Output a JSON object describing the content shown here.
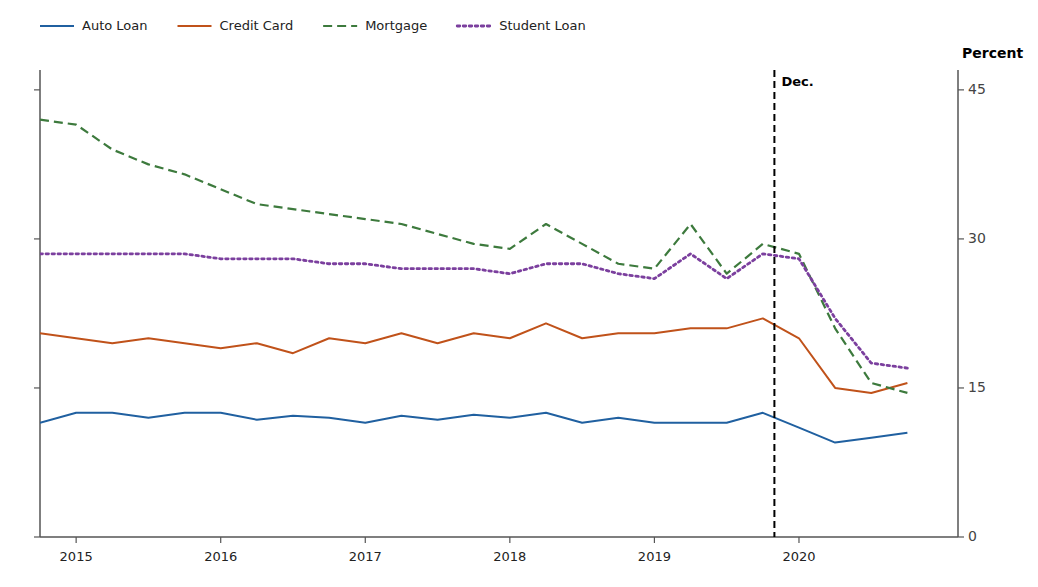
{
  "chart_data": {
    "type": "line",
    "y_label": "Percent",
    "x": [
      2014.75,
      2015.0,
      2015.25,
      2015.5,
      2015.75,
      2016.0,
      2016.25,
      2016.5,
      2016.75,
      2017.0,
      2017.25,
      2017.5,
      2017.75,
      2018.0,
      2018.25,
      2018.5,
      2018.75,
      2019.0,
      2019.25,
      2019.5,
      2019.75,
      2020.0,
      2020.25,
      2020.5,
      2020.75
    ],
    "xlim": [
      2014.75,
      2021.1
    ],
    "xticks": [
      2015,
      2016,
      2017,
      2018,
      2019,
      2020
    ],
    "ylim": [
      0,
      47
    ],
    "yticks": [
      0,
      15,
      30,
      45
    ],
    "grid": false,
    "legend": "top",
    "annotations": [
      {
        "x": 2019.83,
        "text": "Dec."
      }
    ],
    "series": [
      {
        "name": "Auto Loan",
        "color": "#2060a0",
        "line_style": "solid",
        "values": [
          11.5,
          12.5,
          12.5,
          12.0,
          12.5,
          12.5,
          11.8,
          12.2,
          12.0,
          11.5,
          12.2,
          11.8,
          12.3,
          12.0,
          12.5,
          11.5,
          12.0,
          11.5,
          11.5,
          11.5,
          12.5,
          11.0,
          9.5,
          10.0,
          10.5
        ]
      },
      {
        "name": "Credit Card",
        "color": "#c0521a",
        "line_style": "solid",
        "values": [
          20.5,
          20.0,
          19.5,
          20.0,
          19.5,
          19.0,
          19.5,
          18.5,
          20.0,
          19.5,
          20.5,
          19.5,
          20.5,
          20.0,
          21.5,
          20.0,
          20.5,
          20.5,
          21.0,
          21.0,
          22.0,
          20.0,
          15.0,
          14.5,
          15.5
        ]
      },
      {
        "name": "Mortgage",
        "color": "#3d7a3d",
        "line_style": "dashed",
        "values": [
          42.0,
          41.5,
          39.0,
          37.5,
          36.5,
          35.0,
          33.5,
          33.0,
          32.5,
          32.0,
          31.5,
          30.5,
          29.5,
          29.0,
          31.5,
          29.5,
          27.5,
          27.0,
          31.5,
          26.5,
          29.5,
          28.5,
          21.0,
          15.5,
          14.5
        ]
      },
      {
        "name": "Student Loan",
        "color": "#7b3f9e",
        "line_style": "dotted",
        "values": [
          28.5,
          28.5,
          28.5,
          28.5,
          28.5,
          28.0,
          28.0,
          28.0,
          27.5,
          27.5,
          27.0,
          27.0,
          27.0,
          26.5,
          27.5,
          27.5,
          26.5,
          26.0,
          28.5,
          26.0,
          28.5,
          28.0,
          22.0,
          17.5,
          17.0
        ]
      }
    ]
  }
}
